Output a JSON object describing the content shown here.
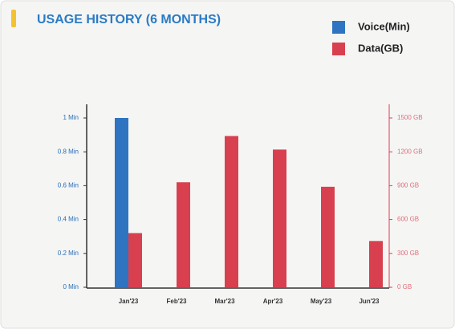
{
  "chart_data": {
    "type": "bar",
    "title": "USAGE HISTORY (6 MONTHS)",
    "categories": [
      "Jan'23",
      "Feb'23",
      "Mar'23",
      "Apr'23",
      "May'23",
      "Jun'23"
    ],
    "series": [
      {
        "name": "Voice(Min)",
        "color": "#2f74c0",
        "values": [
          1,
          0,
          0,
          0,
          0,
          0
        ]
      },
      {
        "name": "Data(GB)",
        "color": "#d8404f",
        "axis": "y2",
        "values": [
          480,
          930,
          1340,
          1220,
          890,
          410
        ]
      }
    ],
    "ylim": [
      0,
      1
    ],
    "yticks": [
      {
        "value": 0,
        "label": "0 Min"
      },
      {
        "value": 0.2,
        "label": "0.2 Min"
      },
      {
        "value": 0.4,
        "label": "0.4 Min"
      },
      {
        "value": 0.6,
        "label": "0.6 Min"
      },
      {
        "value": 0.8,
        "label": "0.8 Min"
      },
      {
        "value": 1,
        "label": "1 Min"
      }
    ],
    "y2lim": [
      0,
      1500
    ],
    "y2ticks": [
      {
        "value": 0,
        "label": "0 GB"
      },
      {
        "value": 300,
        "label": "300 GB"
      },
      {
        "value": 600,
        "label": "600 GB"
      },
      {
        "value": 900,
        "label": "900 GB"
      },
      {
        "value": 1200,
        "label": "1200 GB"
      },
      {
        "value": 1500,
        "label": "1500 GB"
      }
    ],
    "legend": "top-right"
  }
}
